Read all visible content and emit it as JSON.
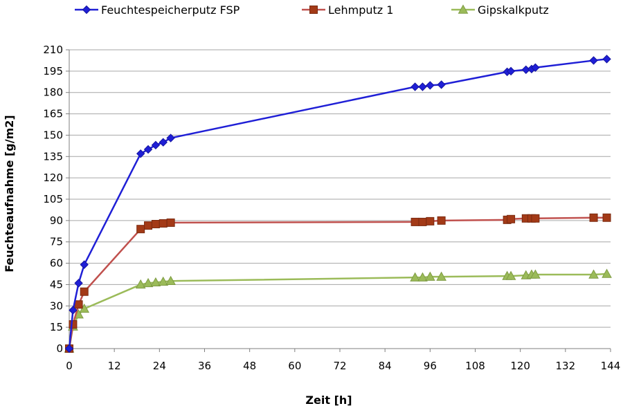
{
  "chart_data": {
    "type": "line",
    "title": "",
    "xlabel": "Zeit [h]",
    "ylabel": "Feuchteaufnahme [g/m2]",
    "xlim": [
      0,
      144
    ],
    "ylim": [
      0,
      210
    ],
    "xticks": [
      0,
      12,
      24,
      36,
      48,
      60,
      72,
      84,
      96,
      108,
      120,
      132,
      144
    ],
    "yticks": [
      0,
      15,
      30,
      45,
      60,
      75,
      90,
      105,
      120,
      135,
      150,
      165,
      180,
      195,
      210
    ],
    "grid": "horizontal",
    "legend_position": "top",
    "series": [
      {
        "name": "Feuchtespeicherputz FSP",
        "color": "#1f1fd6",
        "marker": "diamond",
        "x": [
          0,
          1,
          2.5,
          4,
          19,
          21,
          23,
          25,
          27,
          92,
          94,
          96,
          99,
          116.5,
          117.5,
          121.5,
          123,
          124,
          139.5,
          143
        ],
        "y": [
          0,
          27,
          46,
          59,
          137,
          140,
          143,
          145,
          148,
          184,
          184,
          185,
          185.5,
          194.5,
          195,
          196,
          196.5,
          197.5,
          202.5,
          203.5
        ]
      },
      {
        "name": "Lehmputz 1",
        "color": "#c0504d",
        "marker": "square",
        "x": [
          0,
          1,
          2.5,
          4,
          19,
          21,
          23,
          25,
          27,
          92,
          94,
          96,
          99,
          116.5,
          117.5,
          121.5,
          123,
          124,
          139.5,
          143
        ],
        "y": [
          0,
          17,
          31,
          40,
          84,
          86.5,
          87.5,
          88,
          88.5,
          89,
          89,
          89.5,
          90,
          90.5,
          91,
          91.5,
          91.5,
          91.5,
          92,
          92
        ]
      },
      {
        "name": "Gipskalkputz",
        "color": "#9bbb59",
        "marker": "triangle",
        "x": [
          0,
          1,
          2.5,
          4,
          19,
          21,
          23,
          25,
          27,
          92,
          94,
          96,
          99,
          116.5,
          117.5,
          121.5,
          123,
          124,
          139.5,
          143
        ],
        "y": [
          0,
          15.5,
          24,
          28,
          45,
          46,
          46.5,
          47,
          47.5,
          50,
          50,
          50.5,
          50.5,
          51,
          51,
          51.5,
          52,
          52,
          52,
          52.5
        ]
      }
    ]
  }
}
